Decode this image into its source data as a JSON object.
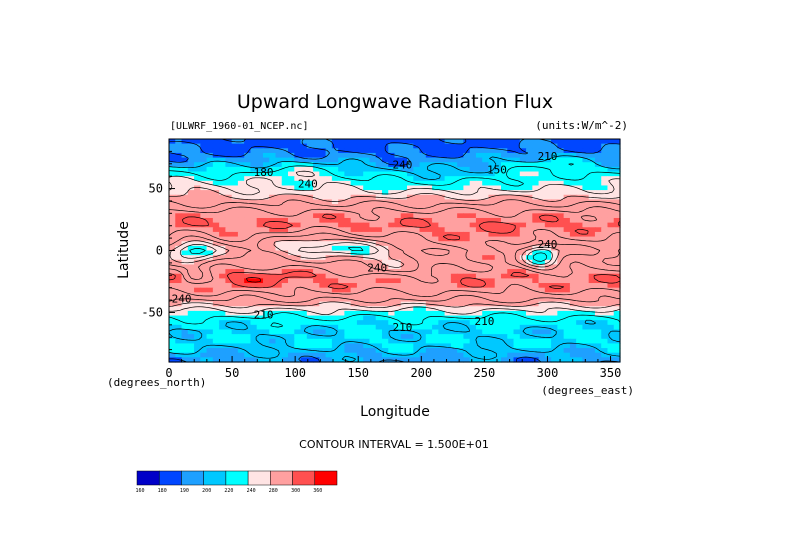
{
  "chart_data": {
    "type": "heatmap",
    "title": "Upward Longwave Radiation Flux",
    "source_label": "[ULWRF_1960-01_NCEP.nc]",
    "units_label": "(units:W/m^-2)",
    "xlabel": "Longitude",
    "ylabel": "Latitude",
    "x_unit_label": "(degrees_east)",
    "y_unit_label": "(degrees_north)",
    "xlim": [
      0,
      357.5
    ],
    "ylim": [
      -90,
      90
    ],
    "x_ticks": [
      0,
      50,
      100,
      150,
      200,
      250,
      300,
      350
    ],
    "y_ticks": [
      50,
      0,
      -50
    ],
    "contour_interval_text": "CONTOUR INTERVAL = 1.500E+01",
    "contour_labels": [
      {
        "x": 110,
        "y": 51,
        "text": "240"
      },
      {
        "x": 75,
        "y": 60,
        "text": "180"
      },
      {
        "x": 185,
        "y": 66,
        "text": "240"
      },
      {
        "x": 300,
        "y": 73,
        "text": "210"
      },
      {
        "x": 260,
        "y": 62,
        "text": "150"
      },
      {
        "x": 165,
        "y": -17,
        "text": "240"
      },
      {
        "x": 300,
        "y": 2,
        "text": "240"
      },
      {
        "x": 10,
        "y": -42,
        "text": "240"
      },
      {
        "x": 75,
        "y": -55,
        "text": "210"
      },
      {
        "x": 185,
        "y": -65,
        "text": "210"
      },
      {
        "x": 250,
        "y": -60,
        "text": "210"
      }
    ],
    "colorbar": {
      "levels": [
        "160",
        "180",
        "190",
        "200",
        "220",
        "240",
        "280",
        "300",
        "360"
      ],
      "colors": [
        "#0000c8",
        "#0046ff",
        "#1ea0ff",
        "#00c8ff",
        "#00ffff",
        "#ffe4e4",
        "#ffa0a0",
        "#ff5050",
        "#ff0000"
      ]
    },
    "zones": [
      {
        "lat": 90,
        "value": 175
      },
      {
        "lat": 80,
        "value": 178
      },
      {
        "lat": 70,
        "value": 185
      },
      {
        "lat": 62,
        "value": 195
      },
      {
        "lat": 55,
        "value": 208
      },
      {
        "lat": 48,
        "value": 225
      },
      {
        "lat": 40,
        "value": 248
      },
      {
        "lat": 30,
        "value": 275
      },
      {
        "lat": 20,
        "value": 282
      },
      {
        "lat": 10,
        "value": 272
      },
      {
        "lat": 0,
        "value": 255
      },
      {
        "lat": -10,
        "value": 262
      },
      {
        "lat": -20,
        "value": 280
      },
      {
        "lat": -30,
        "value": 278
      },
      {
        "lat": -40,
        "value": 255
      },
      {
        "lat": -48,
        "value": 225
      },
      {
        "lat": -56,
        "value": 205
      },
      {
        "lat": -65,
        "value": 198
      },
      {
        "lat": -75,
        "value": 200
      },
      {
        "lat": -82,
        "value": 192
      },
      {
        "lat": -90,
        "value": 185
      }
    ],
    "anomalies": [
      {
        "lon": 20,
        "lat": 0,
        "rlon": 18,
        "rlat": 9,
        "amp": -55
      },
      {
        "lon": 115,
        "lat": 5,
        "rlon": 35,
        "rlat": 9,
        "amp": -40
      },
      {
        "lon": 155,
        "lat": 0,
        "rlon": 28,
        "rlat": 8,
        "amp": -30
      },
      {
        "lon": 180,
        "lat": -15,
        "rlon": 30,
        "rlat": 7,
        "amp": -22
      },
      {
        "lon": 295,
        "lat": -5,
        "rlon": 14,
        "rlat": 10,
        "amp": -55
      },
      {
        "lon": 250,
        "lat": 0,
        "rlon": 35,
        "rlat": 14,
        "amp": 15
      },
      {
        "lon": 70,
        "lat": -22,
        "rlon": 28,
        "rlat": 7,
        "amp": 15
      },
      {
        "lon": 20,
        "lat": -20,
        "rlon": 10,
        "rlat": 6,
        "amp": -30
      },
      {
        "lon": 100,
        "lat": 62,
        "rlon": 55,
        "rlat": 10,
        "amp": 25
      },
      {
        "lon": 300,
        "lat": 66,
        "rlon": 50,
        "rlat": 12,
        "amp": 22
      },
      {
        "lon": 15,
        "lat": 55,
        "rlon": 25,
        "rlat": 10,
        "amp": 20
      }
    ]
  }
}
